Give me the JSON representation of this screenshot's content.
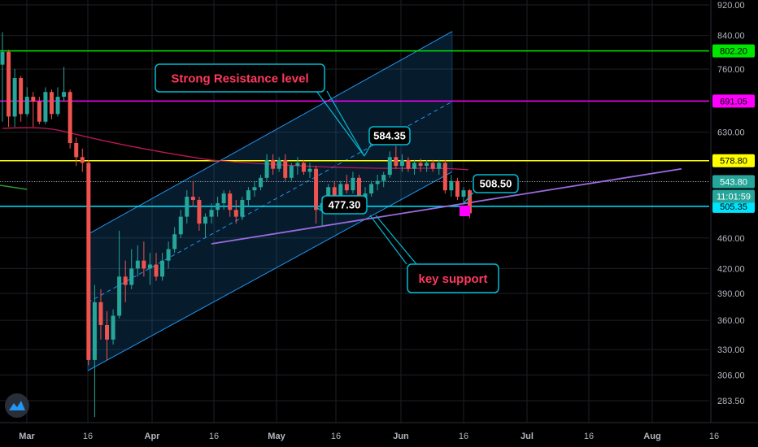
{
  "chart_data": {
    "type": "candlestick",
    "y_axis": {
      "scale": "log",
      "ticks": [
        "920.00",
        "840.00",
        "760.00",
        "691.05",
        "630.00",
        "578.80",
        "543.80",
        "505.35",
        "460.00",
        "420.00",
        "390.00",
        "360.00",
        "330.00",
        "306.00",
        "283.50"
      ],
      "range": [
        270,
        930
      ]
    },
    "x_axis": {
      "ticks": [
        {
          "label": "Mar",
          "bold": true
        },
        {
          "label": "16",
          "bold": false
        },
        {
          "label": "Apr",
          "bold": true
        },
        {
          "label": "16",
          "bold": false
        },
        {
          "label": "May",
          "bold": true
        },
        {
          "label": "16",
          "bold": false
        },
        {
          "label": "Jun",
          "bold": true
        },
        {
          "label": "16",
          "bold": false
        },
        {
          "label": "Jul",
          "bold": true
        },
        {
          "label": "16",
          "bold": false
        },
        {
          "label": "Aug",
          "bold": true
        },
        {
          "label": "16",
          "bold": false
        }
      ]
    },
    "horizontal_levels": [
      {
        "price": 802.2,
        "label": "802.20",
        "color": "#00e600"
      },
      {
        "price": 691.05,
        "label": "691.05",
        "color": "#ff00ff"
      },
      {
        "price": 578.8,
        "label": "578.80",
        "color": "#ffff00"
      },
      {
        "price": 505.35,
        "label": "505.35",
        "color": "#00e5ff"
      }
    ],
    "price_labels": [
      {
        "label": "543.80",
        "color": "#26a69a",
        "text_color": "#ffffff"
      },
      {
        "label": "11:01:59",
        "color": "#26a69a",
        "text_color": "#ffffff"
      }
    ],
    "callouts": [
      {
        "text": "Strong Resistance level",
        "color": "#ff3860"
      },
      {
        "text": "key support",
        "color": "#ff3860"
      },
      {
        "text": "584.35",
        "color": "#ffffff"
      },
      {
        "text": "477.30",
        "color": "#ffffff"
      },
      {
        "text": "508.50",
        "color": "#ffffff"
      }
    ],
    "colors": {
      "up": "#26a69a",
      "down": "#ef5350",
      "channel": "#2196f3",
      "trendline": "#9c6ade",
      "moving_average": "#c2185b",
      "callout_border": "#00bcd4"
    },
    "series": [
      {
        "date": "Feb 27",
        "open": 770,
        "high": 848,
        "low": 650,
        "close": 800
      },
      {
        "date": "Mar 02",
        "open": 800,
        "high": 805,
        "low": 640,
        "close": 660
      },
      {
        "date": "Mar 03",
        "open": 660,
        "high": 760,
        "low": 640,
        "close": 740
      },
      {
        "date": "Mar 04",
        "open": 740,
        "high": 745,
        "low": 650,
        "close": 665
      },
      {
        "date": "Mar 05",
        "open": 665,
        "high": 720,
        "low": 660,
        "close": 700
      },
      {
        "date": "Mar 06",
        "open": 700,
        "high": 710,
        "low": 640,
        "close": 690
      },
      {
        "date": "Mar 09",
        "open": 690,
        "high": 700,
        "low": 645,
        "close": 650
      },
      {
        "date": "Mar 10",
        "open": 650,
        "high": 720,
        "low": 645,
        "close": 710
      },
      {
        "date": "Mar 11",
        "open": 710,
        "high": 715,
        "low": 655,
        "close": 665
      },
      {
        "date": "Mar 12",
        "open": 665,
        "high": 720,
        "low": 660,
        "close": 700
      },
      {
        "date": "Mar 13",
        "open": 700,
        "high": 765,
        "low": 690,
        "close": 710
      },
      {
        "date": "Mar 16",
        "open": 710,
        "high": 715,
        "low": 600,
        "close": 610
      },
      {
        "date": "Mar 17",
        "open": 610,
        "high": 620,
        "low": 570,
        "close": 585
      },
      {
        "date": "Mar 18",
        "open": 585,
        "high": 600,
        "low": 560,
        "close": 575
      },
      {
        "date": "Mar 19",
        "open": 575,
        "high": 580,
        "low": 315,
        "close": 320
      },
      {
        "date": "Mar 20",
        "open": 320,
        "high": 400,
        "low": 270,
        "close": 380
      },
      {
        "date": "Mar 23",
        "open": 380,
        "high": 395,
        "low": 340,
        "close": 355
      },
      {
        "date": "Mar 24",
        "open": 355,
        "high": 370,
        "low": 320,
        "close": 340
      },
      {
        "date": "Mar 25",
        "open": 340,
        "high": 372,
        "low": 335,
        "close": 365
      },
      {
        "date": "Mar 26",
        "open": 365,
        "high": 470,
        "low": 362,
        "close": 410
      },
      {
        "date": "Mar 27",
        "open": 410,
        "high": 430,
        "low": 380,
        "close": 400
      },
      {
        "date": "Mar 30",
        "open": 400,
        "high": 445,
        "low": 395,
        "close": 420
      },
      {
        "date": "Mar 31",
        "open": 420,
        "high": 450,
        "low": 410,
        "close": 430
      },
      {
        "date": "Apr 01",
        "open": 430,
        "high": 455,
        "low": 410,
        "close": 420
      },
      {
        "date": "Apr 02",
        "open": 420,
        "high": 440,
        "low": 400,
        "close": 425
      },
      {
        "date": "Apr 03",
        "open": 425,
        "high": 440,
        "low": 405,
        "close": 410
      },
      {
        "date": "Apr 06",
        "open": 410,
        "high": 440,
        "low": 405,
        "close": 430
      },
      {
        "date": "Apr 07",
        "open": 430,
        "high": 455,
        "low": 420,
        "close": 445
      },
      {
        "date": "Apr 08",
        "open": 445,
        "high": 475,
        "low": 440,
        "close": 465
      },
      {
        "date": "Apr 09",
        "open": 465,
        "high": 500,
        "low": 460,
        "close": 490
      },
      {
        "date": "Apr 13",
        "open": 490,
        "high": 530,
        "low": 480,
        "close": 520
      },
      {
        "date": "Apr 14",
        "open": 520,
        "high": 545,
        "low": 505,
        "close": 515
      },
      {
        "date": "Apr 15",
        "open": 515,
        "high": 520,
        "low": 470,
        "close": 480
      },
      {
        "date": "Apr 16",
        "open": 480,
        "high": 495,
        "low": 460,
        "close": 490
      },
      {
        "date": "Apr 17",
        "open": 490,
        "high": 510,
        "low": 480,
        "close": 500
      },
      {
        "date": "Apr 20",
        "open": 500,
        "high": 520,
        "low": 490,
        "close": 510
      },
      {
        "date": "Apr 21",
        "open": 510,
        "high": 530,
        "low": 500,
        "close": 525
      },
      {
        "date": "Apr 22",
        "open": 525,
        "high": 530,
        "low": 490,
        "close": 500
      },
      {
        "date": "Apr 23",
        "open": 500,
        "high": 515,
        "low": 480,
        "close": 490
      },
      {
        "date": "Apr 24",
        "open": 490,
        "high": 520,
        "low": 485,
        "close": 515
      },
      {
        "date": "Apr 27",
        "open": 515,
        "high": 535,
        "low": 505,
        "close": 530
      },
      {
        "date": "Apr 28",
        "open": 530,
        "high": 545,
        "low": 520,
        "close": 535
      },
      {
        "date": "Apr 29",
        "open": 535,
        "high": 555,
        "low": 530,
        "close": 550
      },
      {
        "date": "Apr 30",
        "open": 550,
        "high": 590,
        "low": 545,
        "close": 580
      },
      {
        "date": "May 01",
        "open": 580,
        "high": 590,
        "low": 555,
        "close": 565
      },
      {
        "date": "May 04",
        "open": 565,
        "high": 585,
        "low": 560,
        "close": 580
      },
      {
        "date": "May 05",
        "open": 580,
        "high": 590,
        "low": 545,
        "close": 550
      },
      {
        "date": "May 06",
        "open": 550,
        "high": 575,
        "low": 545,
        "close": 570
      },
      {
        "date": "May 07",
        "open": 570,
        "high": 585,
        "low": 555,
        "close": 575
      },
      {
        "date": "May 08",
        "open": 575,
        "high": 580,
        "low": 555,
        "close": 560
      },
      {
        "date": "May 11",
        "open": 560,
        "high": 575,
        "low": 550,
        "close": 565
      },
      {
        "date": "May 12",
        "open": 565,
        "high": 570,
        "low": 480,
        "close": 500
      },
      {
        "date": "May 13",
        "open": 500,
        "high": 520,
        "low": 477,
        "close": 510
      },
      {
        "date": "May 14",
        "open": 510,
        "high": 540,
        "low": 505,
        "close": 535
      },
      {
        "date": "May 15",
        "open": 535,
        "high": 545,
        "low": 515,
        "close": 520
      },
      {
        "date": "May 18",
        "open": 520,
        "high": 545,
        "low": 515,
        "close": 540
      },
      {
        "date": "May 19",
        "open": 540,
        "high": 555,
        "low": 525,
        "close": 530
      },
      {
        "date": "May 20",
        "open": 530,
        "high": 560,
        "low": 525,
        "close": 550
      },
      {
        "date": "May 21",
        "open": 550,
        "high": 555,
        "low": 505,
        "close": 515
      },
      {
        "date": "May 22",
        "open": 515,
        "high": 535,
        "low": 505,
        "close": 525
      },
      {
        "date": "May 26",
        "open": 525,
        "high": 545,
        "low": 520,
        "close": 540
      },
      {
        "date": "May 27",
        "open": 540,
        "high": 555,
        "low": 530,
        "close": 545
      },
      {
        "date": "May 28",
        "open": 545,
        "high": 560,
        "low": 535,
        "close": 555
      },
      {
        "date": "May 29",
        "open": 555,
        "high": 595,
        "low": 550,
        "close": 585
      },
      {
        "date": "Jun 01",
        "open": 585,
        "high": 605,
        "low": 565,
        "close": 570
      },
      {
        "date": "Jun 02",
        "open": 570,
        "high": 590,
        "low": 560,
        "close": 580
      },
      {
        "date": "Jun 03",
        "open": 580,
        "high": 585,
        "low": 560,
        "close": 565
      },
      {
        "date": "Jun 04",
        "open": 565,
        "high": 580,
        "low": 555,
        "close": 575
      },
      {
        "date": "Jun 05",
        "open": 575,
        "high": 582,
        "low": 560,
        "close": 570
      },
      {
        "date": "Jun 08",
        "open": 570,
        "high": 580,
        "low": 560,
        "close": 575
      },
      {
        "date": "Jun 09",
        "open": 575,
        "high": 580,
        "low": 560,
        "close": 565
      },
      {
        "date": "Jun 10",
        "open": 565,
        "high": 580,
        "low": 555,
        "close": 575
      },
      {
        "date": "Jun 11",
        "open": 575,
        "high": 580,
        "low": 525,
        "close": 530
      },
      {
        "date": "Jun 12",
        "open": 530,
        "high": 555,
        "low": 520,
        "close": 545
      },
      {
        "date": "Jun 15",
        "open": 545,
        "high": 550,
        "low": 515,
        "close": 520
      },
      {
        "date": "Jun 16",
        "open": 520,
        "high": 535,
        "low": 508,
        "close": 530
      },
      {
        "date": "Jun 17",
        "open": 530,
        "high": 532,
        "low": 488,
        "close": 495
      }
    ]
  },
  "branding": {
    "logo_name": "tradingview-logo-icon"
  }
}
